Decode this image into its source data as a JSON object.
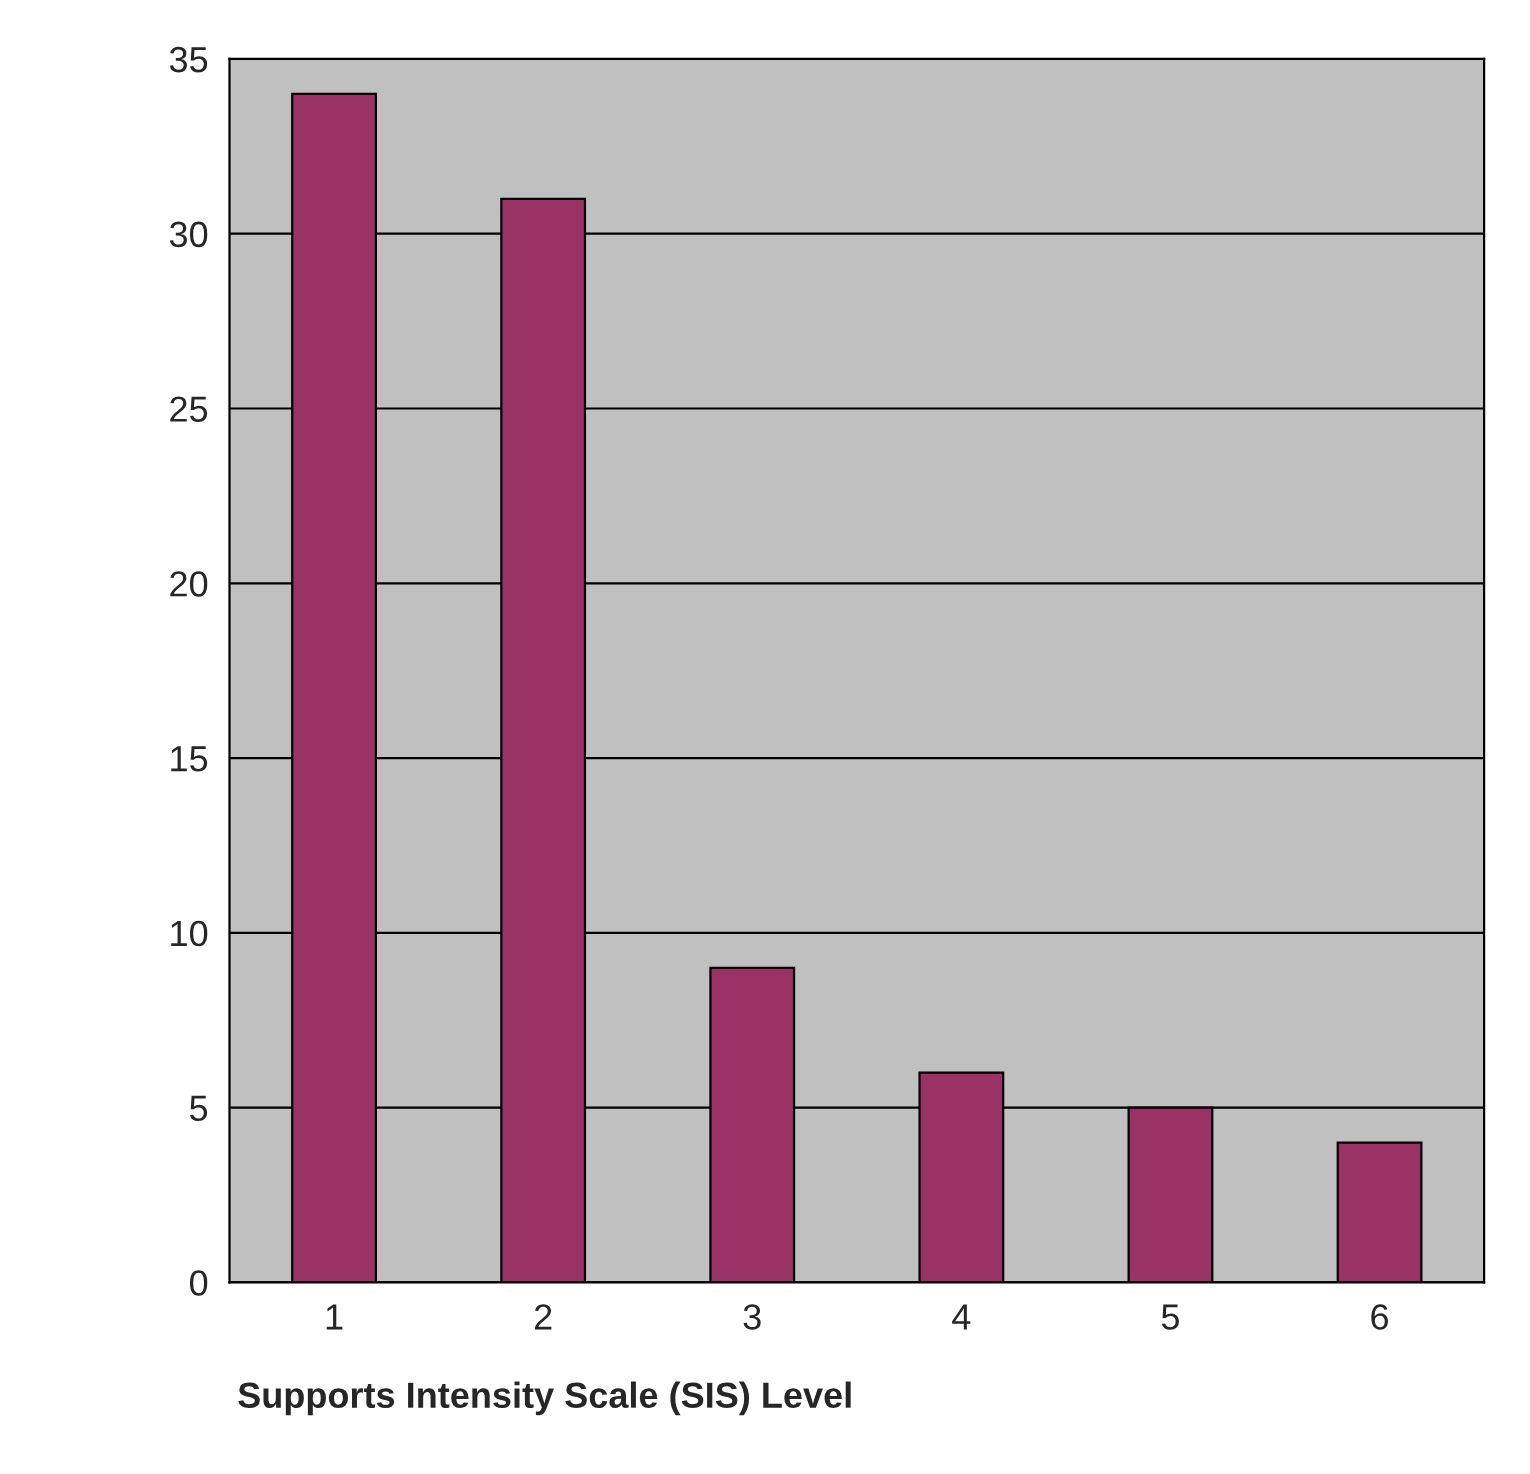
{
  "chart_data": {
    "type": "bar",
    "xlabel": "Supports Intensity Scale (SIS) Level",
    "categories": [
      "1",
      "2",
      "3",
      "4",
      "5",
      "6"
    ],
    "values": [
      34,
      31,
      9,
      6,
      5,
      4
    ],
    "color": "#993366",
    "ylim": [
      0,
      35
    ],
    "yticks": [
      0,
      5,
      10,
      15,
      20,
      25,
      30,
      35
    ],
    "grid": "y"
  }
}
